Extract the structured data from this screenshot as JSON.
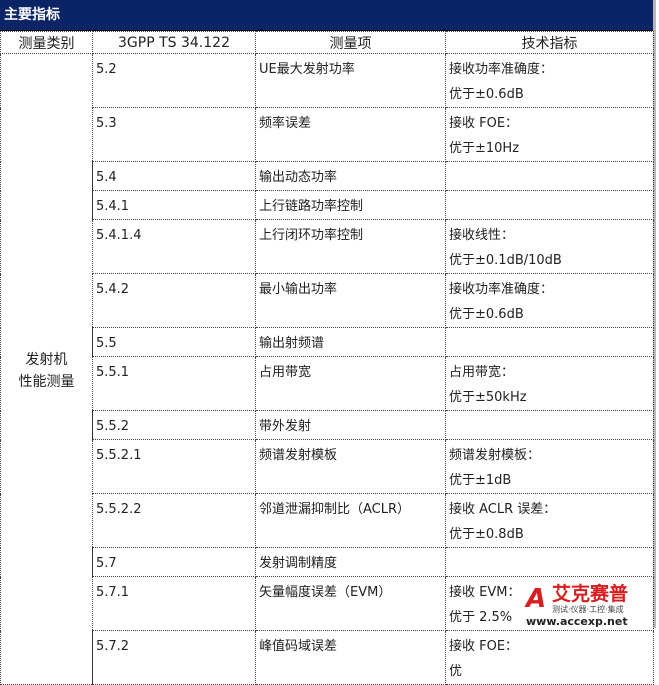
{
  "title": "主要指标",
  "headers": [
    "测量类别",
    "3GPP TS 34.122",
    "测量项",
    "技术指标"
  ],
  "category": "发射机\n性能测量",
  "rows": [
    {
      "clause": "5.2",
      "item": "UE最大发射功率",
      "spec1": "接收功率准确度：",
      "spec2": "优于±0.6dB"
    },
    {
      "clause": "5.3",
      "item": "频率误差",
      "spec1": "接收 FOE：",
      "spec2": "优于±10Hz"
    },
    {
      "clause": "5.4",
      "item": "输出动态功率",
      "spec1": "",
      "spec2": ""
    },
    {
      "clause": "5.4.1",
      "item": "上行链路功率控制",
      "spec1": "",
      "spec2": ""
    },
    {
      "clause": "5.4.1.4",
      "item": "上行闭环功率控制",
      "spec1": "接收线性：",
      "spec2": "优于±0.1dB/10dB"
    },
    {
      "clause": "5.4.2",
      "item": "最小输出功率",
      "spec1": "接收功率准确度：",
      "spec2": "优于±0.6dB"
    },
    {
      "clause": "5.5",
      "item": "输出射频谱",
      "spec1": "",
      "spec2": ""
    },
    {
      "clause": "5.5.1",
      "item": "占用带宽",
      "spec1": "占用带宽：",
      "spec2": "优于±50kHz"
    },
    {
      "clause": "5.5.2",
      "item": "带外发射",
      "spec1": "",
      "spec2": ""
    },
    {
      "clause": "5.5.2.1",
      "item": "频谱发射模板",
      "spec1": "频谱发射模板：",
      "spec2": "优于±1dB"
    },
    {
      "clause": "5.5.2.2",
      "item": "邻道泄漏抑制比（ACLR）",
      "spec1": "接收 ACLR 误差：",
      "spec2": "优于±0.8dB"
    },
    {
      "clause": "5.7",
      "item": "发射调制精度",
      "spec1": "",
      "spec2": ""
    },
    {
      "clause": "5.7.1",
      "item": "矢量幅度误差（EVM）",
      "spec1": "接收 EVM：",
      "spec2": "优于 2.5%"
    },
    {
      "clause": "5.7.2",
      "item": "峰值码域误差",
      "spec1": "接收 FOE：",
      "spec2": "优"
    }
  ],
  "watermark": {
    "cn": "艾克赛普",
    "sub": "测试·仪器·工控·集成",
    "url": "www.accexp.net",
    "mark": "ACCEXP"
  }
}
